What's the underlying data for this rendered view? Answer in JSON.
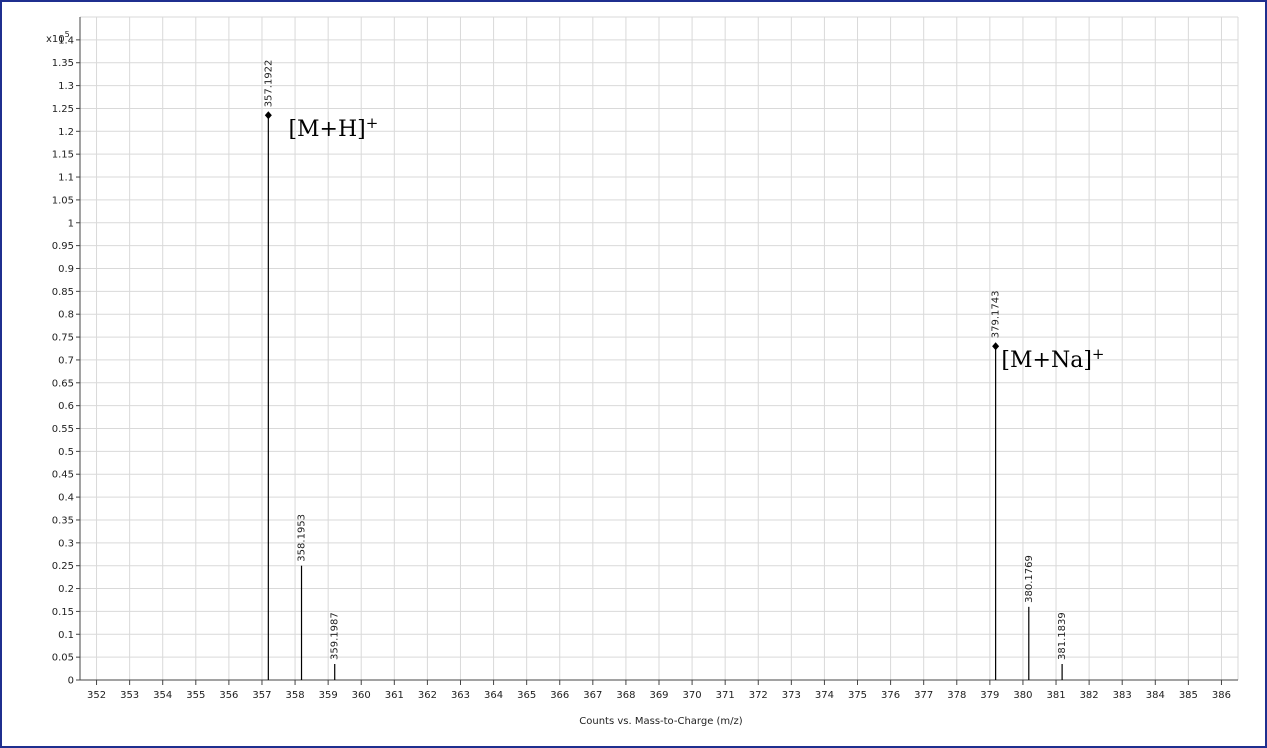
{
  "chart_data": {
    "type": "bar",
    "xlabel": "Counts vs. Mass-to-Charge (m/z)",
    "ylabel": "",
    "y_multiplier": {
      "base": "x10",
      "exponent": "5"
    },
    "xlim": [
      351.5,
      386.5
    ],
    "ylim": [
      0,
      1.45
    ],
    "x_ticks": [
      352,
      353,
      354,
      355,
      356,
      357,
      358,
      359,
      360,
      361,
      362,
      363,
      364,
      365,
      366,
      367,
      368,
      369,
      370,
      371,
      372,
      373,
      374,
      375,
      376,
      377,
      378,
      379,
      380,
      381,
      382,
      383,
      384,
      385,
      386
    ],
    "y_ticks": [
      0,
      0.05,
      0.1,
      0.15,
      0.2,
      0.25,
      0.3,
      0.35,
      0.4,
      0.45,
      0.5,
      0.55,
      0.6,
      0.65,
      0.7,
      0.75,
      0.8,
      0.85,
      0.9,
      0.95,
      1,
      1.05,
      1.1,
      1.15,
      1.2,
      1.25,
      1.3,
      1.35,
      1.4
    ],
    "y_tick_labels": [
      "0",
      "0.05",
      "0.1",
      "0.15",
      "0.2",
      "0.25",
      "0.3",
      "0.35",
      "0.4",
      "0.45",
      "0.5",
      "0.55",
      "0.6",
      "0.65",
      "0.7",
      "0.75",
      "0.8",
      "0.85",
      "0.9",
      "0.95",
      "1",
      "1.05",
      "1.1",
      "1.15",
      "1.2",
      "1.25",
      "1.3",
      "1.35",
      "1.4"
    ],
    "grid": true,
    "peaks": [
      {
        "x": 357.1922,
        "y": 1.235,
        "label": "357.1922",
        "marker": true
      },
      {
        "x": 358.1953,
        "y": 0.25,
        "label": "358.1953",
        "marker": false
      },
      {
        "x": 359.1987,
        "y": 0.035,
        "label": "359.1987",
        "marker": false
      },
      {
        "x": 379.1743,
        "y": 0.73,
        "label": "379.1743",
        "marker": true
      },
      {
        "x": 380.1769,
        "y": 0.16,
        "label": "380.1769",
        "marker": false
      },
      {
        "x": 381.1839,
        "y": 0.035,
        "label": "381.1839",
        "marker": false
      }
    ],
    "annotations": [
      {
        "text": "[M+H]",
        "sup": "+",
        "x": 357.8,
        "y": 1.19
      },
      {
        "text": "[M+Na]",
        "sup": "+",
        "x": 379.35,
        "y": 0.685
      }
    ],
    "colors": {
      "frame": "#1f2f8f",
      "grid": "#d9d9d9",
      "axis": "#444444",
      "peak": "#000000"
    }
  }
}
